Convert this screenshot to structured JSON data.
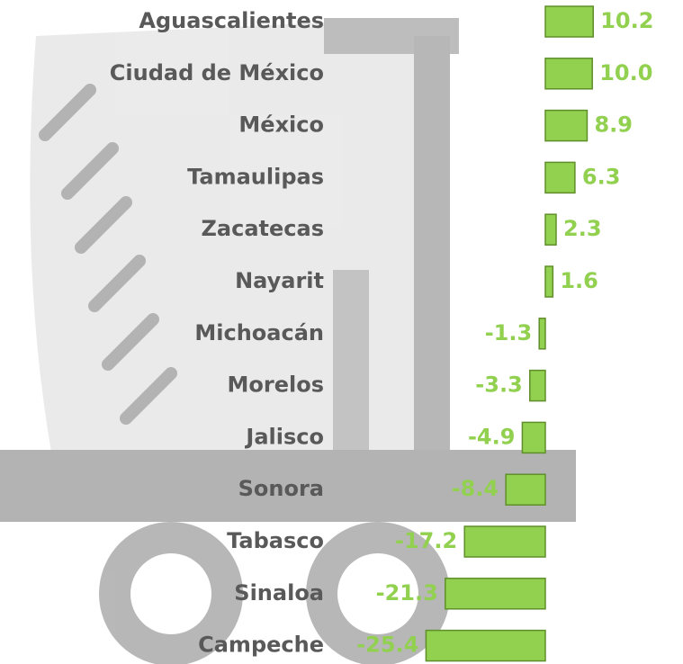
{
  "chart_data": {
    "type": "bar",
    "orientation": "horizontal",
    "categories": [
      "Aguascalientes",
      "Ciudad de México",
      "México",
      "Tamaulipas",
      "Zacatecas",
      "Nayarit",
      "Michoacán",
      "Morelos",
      "Jalisco",
      "Sonora",
      "Tabasco",
      "Sinaloa",
      "Campeche"
    ],
    "values": [
      10.2,
      10.0,
      8.9,
      6.3,
      2.3,
      1.6,
      -1.3,
      -3.3,
      -4.9,
      -8.4,
      -17.2,
      -21.3,
      -25.4
    ],
    "value_labels": [
      "10.2",
      "10.0",
      "8.9",
      "6.3",
      "2.3",
      "1.6",
      "-1.3",
      "-3.3",
      "-4.9",
      "-8.4",
      "-17.2",
      "-21.3",
      "-25.4"
    ],
    "color": "#92d050"
  }
}
